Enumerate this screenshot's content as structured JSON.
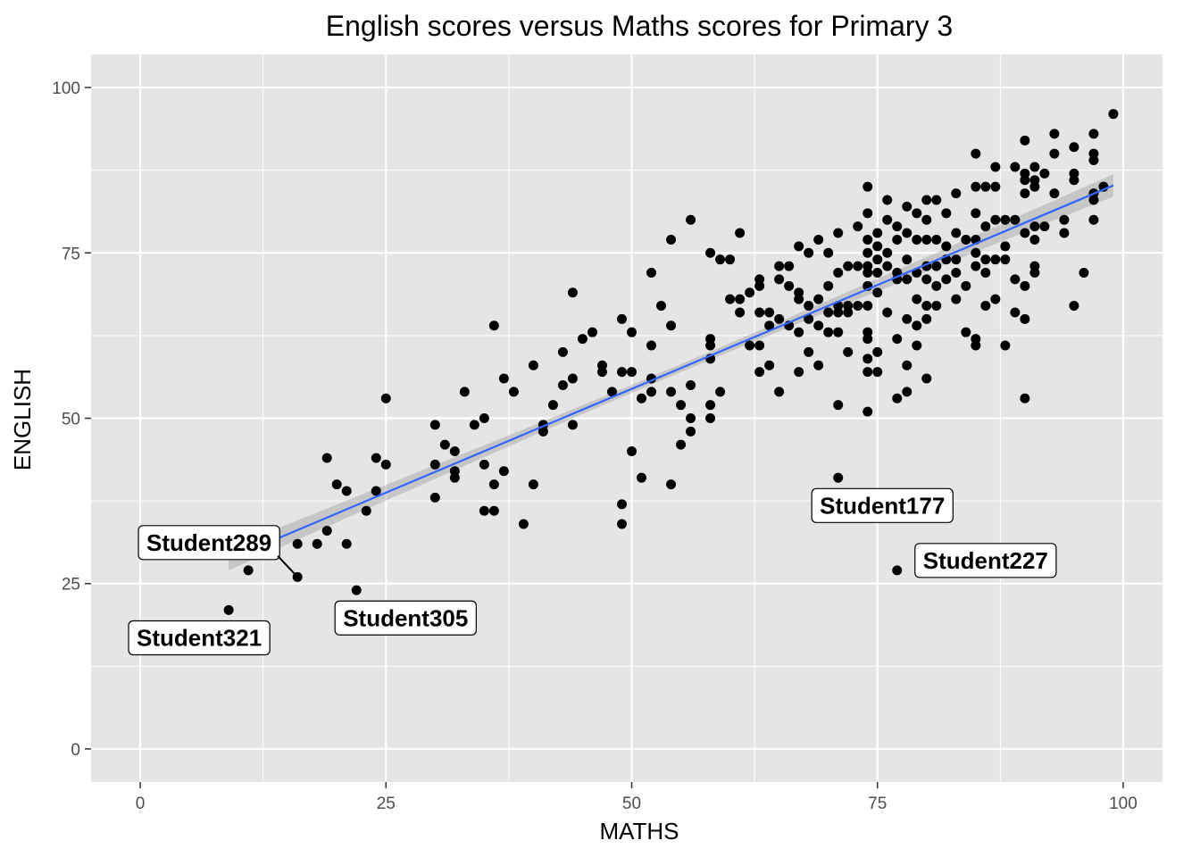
{
  "chart_data": {
    "type": "scatter",
    "title": "English scores versus Maths scores for Primary 3",
    "xlabel": "MATHS",
    "ylabel": "ENGLISH",
    "xlim": [
      -5,
      104
    ],
    "ylim": [
      -5,
      105
    ],
    "x_ticks": [
      0,
      25,
      50,
      75,
      100
    ],
    "y_ticks": [
      0,
      25,
      50,
      75,
      100
    ],
    "grid": true,
    "colors": {
      "panel": "#e5e5e5",
      "grid": "#ffffff",
      "points": "#000000",
      "trend_line": "#3366ff",
      "confidence_band": "#999999"
    },
    "trend_line": {
      "method": "linear",
      "from": [
        9,
        28.7
      ],
      "to": [
        99,
        85.2
      ],
      "band_halfwidth_ends": 1.7,
      "band_halfwidth_center": 0.6
    },
    "points": [
      [
        9,
        21
      ],
      [
        11,
        27
      ],
      [
        16,
        26
      ],
      [
        16,
        31
      ],
      [
        18,
        31
      ],
      [
        19,
        33
      ],
      [
        19,
        44
      ],
      [
        20,
        40
      ],
      [
        21,
        39
      ],
      [
        21,
        31
      ],
      [
        22,
        24
      ],
      [
        23,
        36
      ],
      [
        24,
        39
      ],
      [
        24,
        44
      ],
      [
        25,
        43
      ],
      [
        25,
        53
      ],
      [
        30,
        49
      ],
      [
        30,
        43
      ],
      [
        30,
        38
      ],
      [
        31,
        46
      ],
      [
        32,
        45
      ],
      [
        32,
        42
      ],
      [
        32,
        41
      ],
      [
        33,
        54
      ],
      [
        34,
        49
      ],
      [
        35,
        50
      ],
      [
        35,
        43
      ],
      [
        35,
        36
      ],
      [
        36,
        36
      ],
      [
        36,
        40
      ],
      [
        36,
        64
      ],
      [
        37,
        56
      ],
      [
        37,
        42
      ],
      [
        38,
        54
      ],
      [
        39,
        34
      ],
      [
        40,
        40
      ],
      [
        40,
        58
      ],
      [
        41,
        48
      ],
      [
        41,
        49
      ],
      [
        42,
        52
      ],
      [
        43,
        55
      ],
      [
        43,
        60
      ],
      [
        44,
        56
      ],
      [
        44,
        49
      ],
      [
        44,
        69
      ],
      [
        45,
        62
      ],
      [
        46,
        63
      ],
      [
        47,
        58
      ],
      [
        47,
        57
      ],
      [
        48,
        54
      ],
      [
        49,
        65
      ],
      [
        49,
        57
      ],
      [
        49,
        37
      ],
      [
        49,
        34
      ],
      [
        50,
        63
      ],
      [
        50,
        57
      ],
      [
        50,
        45
      ],
      [
        51,
        53
      ],
      [
        51,
        41
      ],
      [
        52,
        72
      ],
      [
        52,
        61
      ],
      [
        52,
        56
      ],
      [
        52,
        54
      ],
      [
        53,
        67
      ],
      [
        54,
        77
      ],
      [
        54,
        64
      ],
      [
        54,
        54
      ],
      [
        54,
        40
      ],
      [
        55,
        46
      ],
      [
        55,
        52
      ],
      [
        56,
        80
      ],
      [
        56,
        55
      ],
      [
        56,
        50
      ],
      [
        56,
        48
      ],
      [
        58,
        75
      ],
      [
        58,
        62
      ],
      [
        58,
        61
      ],
      [
        58,
        59
      ],
      [
        58,
        52
      ],
      [
        58,
        50
      ],
      [
        59,
        74
      ],
      [
        59,
        54
      ],
      [
        60,
        74
      ],
      [
        60,
        68
      ],
      [
        61,
        78
      ],
      [
        61,
        66
      ],
      [
        61,
        68
      ],
      [
        62,
        69
      ],
      [
        62,
        61
      ],
      [
        63,
        71
      ],
      [
        63,
        70
      ],
      [
        63,
        66
      ],
      [
        63,
        61
      ],
      [
        63,
        57
      ],
      [
        64,
        66
      ],
      [
        64,
        64
      ],
      [
        64,
        58
      ],
      [
        65,
        73
      ],
      [
        65,
        71
      ],
      [
        65,
        65
      ],
      [
        65,
        54
      ],
      [
        66,
        73
      ],
      [
        66,
        70
      ],
      [
        66,
        64
      ],
      [
        67,
        76
      ],
      [
        67,
        69
      ],
      [
        67,
        68
      ],
      [
        67,
        63
      ],
      [
        67,
        57
      ],
      [
        68,
        75
      ],
      [
        68,
        67
      ],
      [
        68,
        65
      ],
      [
        68,
        60
      ],
      [
        69,
        77
      ],
      [
        69,
        68
      ],
      [
        69,
        64
      ],
      [
        69,
        58
      ],
      [
        70,
        75
      ],
      [
        70,
        70
      ],
      [
        70,
        66
      ],
      [
        70,
        63
      ],
      [
        71,
        78
      ],
      [
        71,
        72
      ],
      [
        71,
        67
      ],
      [
        71,
        66
      ],
      [
        71,
        63
      ],
      [
        71,
        52
      ],
      [
        71,
        41
      ],
      [
        72,
        73
      ],
      [
        72,
        67
      ],
      [
        72,
        66
      ],
      [
        72,
        60
      ],
      [
        73,
        79
      ],
      [
        73,
        73
      ],
      [
        73,
        67
      ],
      [
        74,
        85
      ],
      [
        74,
        81
      ],
      [
        74,
        77
      ],
      [
        74,
        75
      ],
      [
        74,
        73
      ],
      [
        74,
        72
      ],
      [
        74,
        70
      ],
      [
        74,
        67
      ],
      [
        74,
        63
      ],
      [
        74,
        62
      ],
      [
        74,
        59
      ],
      [
        74,
        57
      ],
      [
        74,
        51
      ],
      [
        75,
        78
      ],
      [
        75,
        76
      ],
      [
        75,
        74
      ],
      [
        75,
        72
      ],
      [
        75,
        69
      ],
      [
        75,
        60
      ],
      [
        75,
        57
      ],
      [
        76,
        83
      ],
      [
        76,
        80
      ],
      [
        76,
        75
      ],
      [
        76,
        73
      ],
      [
        76,
        66
      ],
      [
        77,
        79
      ],
      [
        77,
        77
      ],
      [
        77,
        72
      ],
      [
        77,
        71
      ],
      [
        77,
        62
      ],
      [
        77,
        53
      ],
      [
        77,
        27
      ],
      [
        78,
        82
      ],
      [
        78,
        78
      ],
      [
        78,
        74
      ],
      [
        78,
        71
      ],
      [
        78,
        65
      ],
      [
        78,
        58
      ],
      [
        78,
        54
      ],
      [
        79,
        81
      ],
      [
        79,
        77
      ],
      [
        79,
        72
      ],
      [
        79,
        68
      ],
      [
        79,
        64
      ],
      [
        79,
        61
      ],
      [
        80,
        83
      ],
      [
        80,
        80
      ],
      [
        80,
        77
      ],
      [
        80,
        73
      ],
      [
        80,
        71
      ],
      [
        80,
        67
      ],
      [
        80,
        65
      ],
      [
        80,
        56
      ],
      [
        81,
        83
      ],
      [
        81,
        77
      ],
      [
        81,
        73
      ],
      [
        81,
        70
      ],
      [
        81,
        67
      ],
      [
        82,
        81
      ],
      [
        82,
        76
      ],
      [
        82,
        74
      ],
      [
        82,
        71
      ],
      [
        83,
        84
      ],
      [
        83,
        78
      ],
      [
        83,
        74
      ],
      [
        83,
        72
      ],
      [
        83,
        68
      ],
      [
        84,
        77
      ],
      [
        84,
        70
      ],
      [
        84,
        63
      ],
      [
        85,
        90
      ],
      [
        85,
        85
      ],
      [
        85,
        81
      ],
      [
        85,
        77
      ],
      [
        85,
        75
      ],
      [
        85,
        73
      ],
      [
        85,
        62
      ],
      [
        85,
        61
      ],
      [
        86,
        85
      ],
      [
        86,
        79
      ],
      [
        86,
        74
      ],
      [
        86,
        72
      ],
      [
        86,
        67
      ],
      [
        87,
        88
      ],
      [
        87,
        85
      ],
      [
        87,
        80
      ],
      [
        87,
        74
      ],
      [
        87,
        68
      ],
      [
        88,
        80
      ],
      [
        88,
        76
      ],
      [
        88,
        74
      ],
      [
        88,
        61
      ],
      [
        89,
        88
      ],
      [
        89,
        80
      ],
      [
        89,
        71
      ],
      [
        89,
        66
      ],
      [
        90,
        92
      ],
      [
        90,
        87
      ],
      [
        90,
        86
      ],
      [
        90,
        84
      ],
      [
        90,
        78
      ],
      [
        90,
        70
      ],
      [
        90,
        65
      ],
      [
        90,
        53
      ],
      [
        91,
        88
      ],
      [
        91,
        86
      ],
      [
        91,
        85
      ],
      [
        91,
        79
      ],
      [
        91,
        77
      ],
      [
        91,
        73
      ],
      [
        91,
        72
      ],
      [
        92,
        87
      ],
      [
        92,
        79
      ],
      [
        93,
        93
      ],
      [
        93,
        90
      ],
      [
        93,
        84
      ],
      [
        94,
        80
      ],
      [
        94,
        78
      ],
      [
        95,
        91
      ],
      [
        95,
        87
      ],
      [
        95,
        86
      ],
      [
        95,
        67
      ],
      [
        96,
        72
      ],
      [
        97,
        93
      ],
      [
        97,
        90
      ],
      [
        97,
        89
      ],
      [
        97,
        84
      ],
      [
        97,
        83
      ],
      [
        97,
        80
      ],
      [
        98,
        85
      ],
      [
        99,
        96
      ]
    ],
    "annotations": [
      {
        "label": "Student321",
        "x": 9,
        "y": 21,
        "box_x": 6,
        "box_y": 16.8
      },
      {
        "label": "Student289",
        "x": 16,
        "y": 26,
        "box_x": 7,
        "box_y": 31.2,
        "leader": true
      },
      {
        "label": "Student305",
        "x": 22,
        "y": 24,
        "box_x": 27,
        "box_y": 19.8
      },
      {
        "label": "Student177",
        "x": 71,
        "y": 41,
        "box_x": 75.5,
        "box_y": 36.8
      },
      {
        "label": "Student227",
        "x": 77,
        "y": 27,
        "box_x": 86,
        "box_y": 28.5
      }
    ]
  }
}
